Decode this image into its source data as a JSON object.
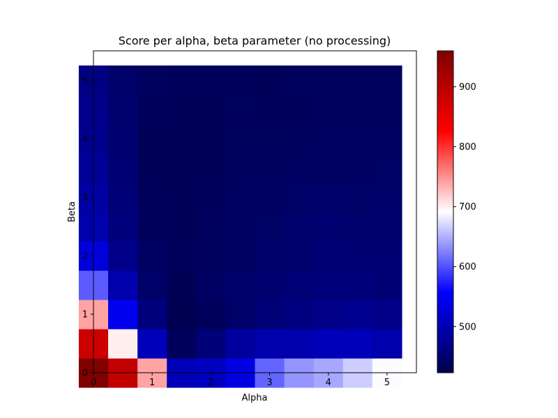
{
  "chart_data": {
    "type": "heatmap",
    "title": "Score per alpha, beta parameter (no processing)",
    "xlabel": "Alpha",
    "ylabel": "Beta",
    "x_centers": [
      0,
      0.5,
      1,
      1.5,
      2,
      2.5,
      3,
      3.5,
      4,
      4.5,
      5
    ],
    "y_centers": [
      0,
      0.5,
      1,
      1.5,
      2,
      2.5,
      3,
      3.5,
      4,
      4.5,
      5
    ],
    "xlim": [
      0,
      5.5
    ],
    "ylim": [
      0,
      5.5
    ],
    "xticks": [
      0,
      1,
      2,
      3,
      4,
      5
    ],
    "yticks": [
      0,
      1,
      2,
      3,
      4,
      5
    ],
    "colormap": "seismic",
    "vmin": 423,
    "vmax": 960,
    "colorbar_ticks": [
      500,
      600,
      700,
      800,
      900
    ],
    "values_rows_from_bottom": [
      [
        960,
        890,
        740,
        505,
        510,
        535,
        610,
        635,
        645,
        665,
        690
      ],
      [
        880,
        700,
        505,
        435,
        455,
        485,
        495,
        495,
        505,
        505,
        495
      ],
      [
        740,
        545,
        460,
        428,
        435,
        445,
        455,
        462,
        468,
        473,
        468
      ],
      [
        605,
        495,
        445,
        430,
        440,
        445,
        450,
        455,
        458,
        458,
        453
      ],
      [
        530,
        470,
        440,
        435,
        437,
        440,
        445,
        448,
        452,
        452,
        452
      ],
      [
        495,
        460,
        435,
        433,
        437,
        440,
        442,
        448,
        450,
        448,
        447
      ],
      [
        488,
        455,
        435,
        433,
        435,
        440,
        440,
        443,
        446,
        443,
        445
      ],
      [
        478,
        452,
        433,
        433,
        433,
        437,
        437,
        440,
        440,
        440,
        442
      ],
      [
        473,
        450,
        433,
        433,
        433,
        436,
        436,
        437,
        440,
        440,
        440
      ],
      [
        470,
        448,
        435,
        433,
        433,
        436,
        435,
        435,
        437,
        437,
        437
      ],
      [
        465,
        445,
        437,
        435,
        435,
        435,
        433,
        437,
        437,
        437,
        437
      ]
    ]
  }
}
